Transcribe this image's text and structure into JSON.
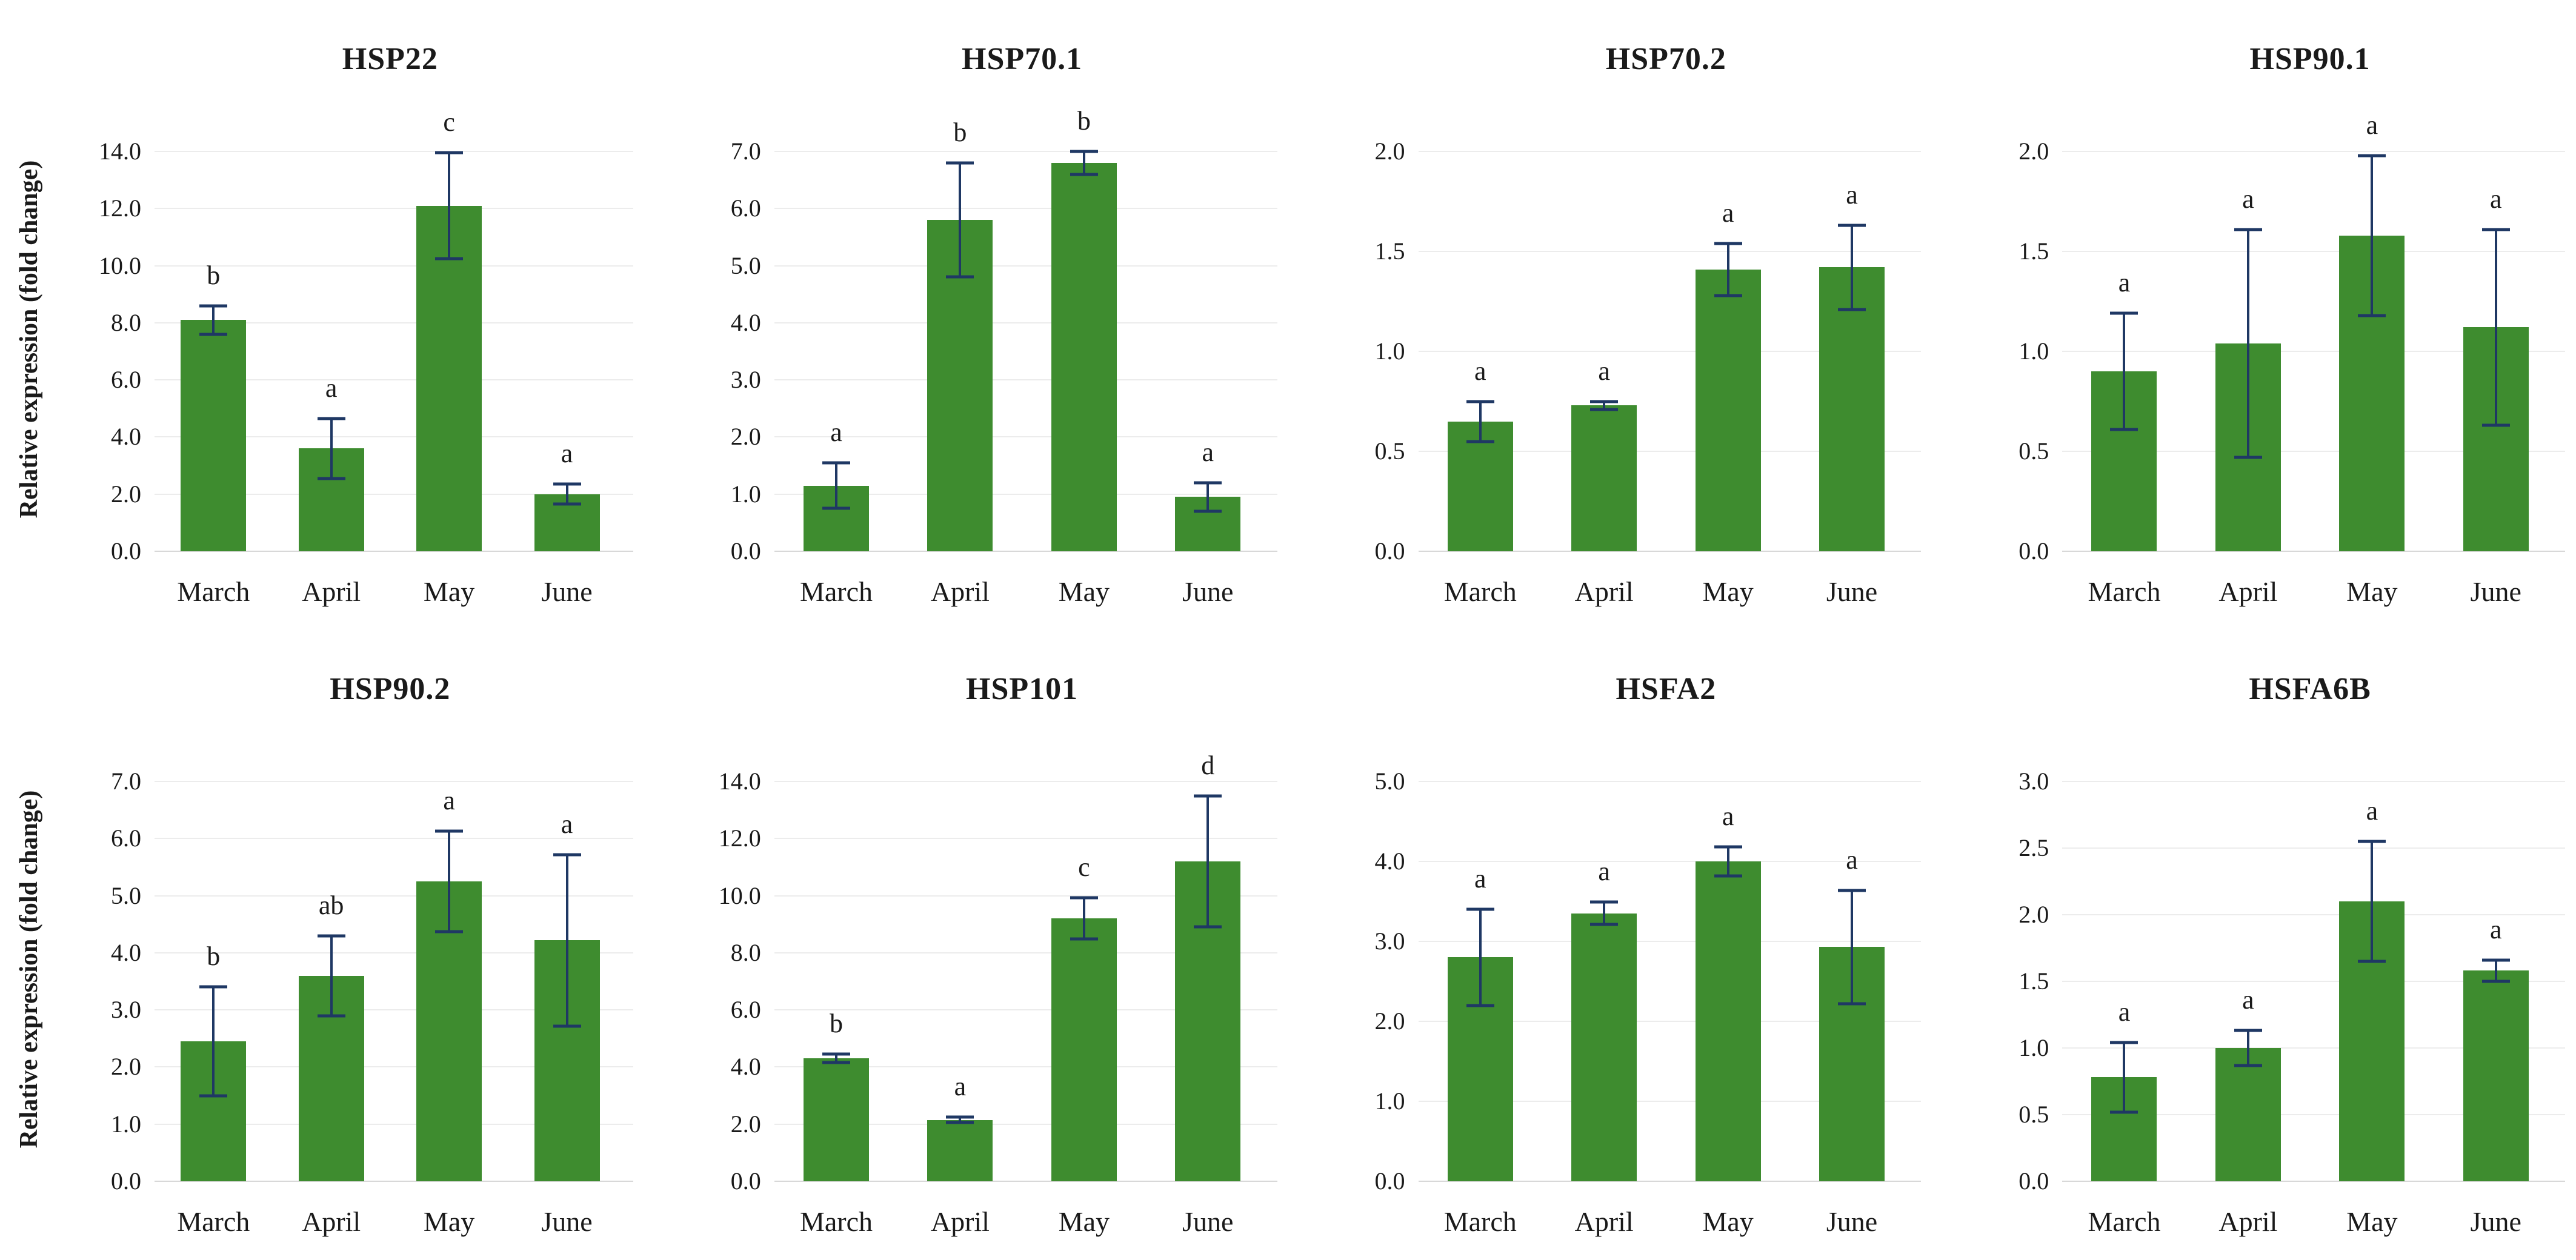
{
  "figure": {
    "y_axis_title": "Relative expression (fold change)",
    "categories": [
      "March",
      "April",
      "May",
      "June"
    ],
    "colors": {
      "bar": "#3E8C2F",
      "error_bar": "#1F3864",
      "gridline": "#ECECEC",
      "baseline": "#D8D8D8",
      "text": "#1A1A1A",
      "background": "#FFFFFF"
    }
  },
  "chart_data": [
    {
      "type": "bar",
      "title": "HSP22",
      "categories": [
        "March",
        "April",
        "May",
        "June"
      ],
      "values": [
        8.1,
        3.6,
        12.1,
        2.0
      ],
      "errors": [
        0.5,
        1.05,
        1.85,
        0.35
      ],
      "letters": [
        "b",
        "a",
        "c",
        "a"
      ],
      "ylabel": "Relative expression (fold change)",
      "show_ylabel": true,
      "ylim": [
        0,
        14
      ],
      "ystep": 2,
      "yticks": [
        "0.0",
        "2.0",
        "4.0",
        "6.0",
        "8.0",
        "10.0",
        "12.0",
        "14.0"
      ],
      "grid": true,
      "legend": "none"
    },
    {
      "type": "bar",
      "title": "HSP70.1",
      "categories": [
        "March",
        "April",
        "May",
        "June"
      ],
      "values": [
        1.15,
        5.8,
        6.8,
        0.95
      ],
      "errors": [
        0.4,
        1.0,
        0.2,
        0.25
      ],
      "letters": [
        "a",
        "b",
        "b",
        "a"
      ],
      "ylabel": "",
      "show_ylabel": false,
      "ylim": [
        0,
        7
      ],
      "ystep": 1,
      "yticks": [
        "0.0",
        "1.0",
        "2.0",
        "3.0",
        "4.0",
        "5.0",
        "6.0",
        "7.0"
      ],
      "grid": true,
      "legend": "none"
    },
    {
      "type": "bar",
      "title": "HSP70.2",
      "categories": [
        "March",
        "April",
        "May",
        "June"
      ],
      "values": [
        0.65,
        0.73,
        1.41,
        1.42
      ],
      "errors": [
        0.1,
        0.02,
        0.13,
        0.21
      ],
      "letters": [
        "a",
        "a",
        "a",
        "a"
      ],
      "ylabel": "",
      "show_ylabel": false,
      "ylim": [
        0,
        2
      ],
      "ystep": 0.5,
      "yticks": [
        "0.0",
        "0.5",
        "1.0",
        "1.5",
        "2.0"
      ],
      "grid": true,
      "legend": "none"
    },
    {
      "type": "bar",
      "title": "HSP90.1",
      "categories": [
        "March",
        "April",
        "May",
        "June"
      ],
      "values": [
        0.9,
        1.04,
        1.58,
        1.12
      ],
      "errors": [
        0.29,
        0.57,
        0.4,
        0.49
      ],
      "letters": [
        "a",
        "a",
        "a",
        "a"
      ],
      "ylabel": "",
      "show_ylabel": false,
      "ylim": [
        0,
        2
      ],
      "ystep": 0.5,
      "yticks": [
        "0.0",
        "0.5",
        "1.0",
        "1.5",
        "2.0"
      ],
      "grid": true,
      "legend": "none"
    },
    {
      "type": "bar",
      "title": "HSP90.2",
      "categories": [
        "March",
        "April",
        "May",
        "June"
      ],
      "values": [
        2.45,
        3.6,
        5.25,
        4.22
      ],
      "errors": [
        0.95,
        0.7,
        0.88,
        1.5
      ],
      "letters": [
        "b",
        "ab",
        "a",
        "a"
      ],
      "ylabel": "Relative expression (fold change)",
      "show_ylabel": true,
      "ylim": [
        0,
        7
      ],
      "ystep": 1,
      "yticks": [
        "0.0",
        "1.0",
        "2.0",
        "3.0",
        "4.0",
        "5.0",
        "6.0",
        "7.0"
      ],
      "grid": true,
      "legend": "none"
    },
    {
      "type": "bar",
      "title": "HSP101",
      "categories": [
        "March",
        "April",
        "May",
        "June"
      ],
      "values": [
        4.3,
        2.15,
        9.2,
        11.2
      ],
      "errors": [
        0.15,
        0.1,
        0.72,
        2.3
      ],
      "letters": [
        "b",
        "a",
        "c",
        "d"
      ],
      "ylabel": "",
      "show_ylabel": false,
      "ylim": [
        0,
        14
      ],
      "ystep": 2,
      "yticks": [
        "0.0",
        "2.0",
        "4.0",
        "6.0",
        "8.0",
        "10.0",
        "12.0",
        "14.0"
      ],
      "grid": true,
      "legend": "none"
    },
    {
      "type": "bar",
      "title": "HSFA2",
      "categories": [
        "March",
        "April",
        "May",
        "June"
      ],
      "values": [
        2.8,
        3.35,
        4.0,
        2.93
      ],
      "errors": [
        0.6,
        0.14,
        0.18,
        0.71
      ],
      "letters": [
        "a",
        "a",
        "a",
        "a"
      ],
      "ylabel": "",
      "show_ylabel": false,
      "ylim": [
        0,
        5
      ],
      "ystep": 1,
      "yticks": [
        "0.0",
        "1.0",
        "2.0",
        "3.0",
        "4.0",
        "5.0"
      ],
      "grid": true,
      "legend": "none"
    },
    {
      "type": "bar",
      "title": "HSFA6B",
      "categories": [
        "March",
        "April",
        "May",
        "June"
      ],
      "values": [
        0.78,
        1.0,
        2.1,
        1.58
      ],
      "errors": [
        0.26,
        0.13,
        0.45,
        0.08
      ],
      "letters": [
        "a",
        "a",
        "a",
        "a"
      ],
      "ylabel": "",
      "show_ylabel": false,
      "ylim": [
        0,
        3
      ],
      "ystep": 0.5,
      "yticks": [
        "0.0",
        "0.5",
        "1.0",
        "1.5",
        "2.0",
        "2.5",
        "3.0"
      ],
      "grid": true,
      "legend": "none"
    }
  ]
}
